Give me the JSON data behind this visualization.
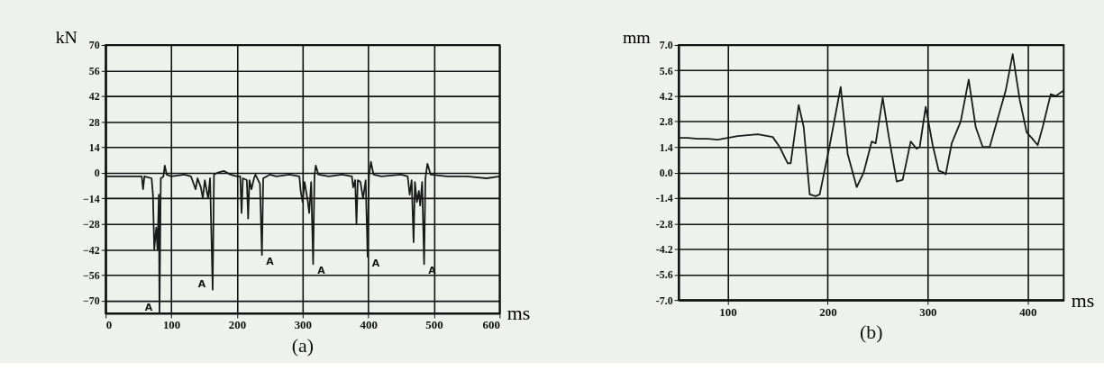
{
  "chart_data": [
    {
      "type": "line",
      "title": "(a)",
      "xlabel": "ms",
      "ylabel": "kN",
      "color": "#1a1a1a",
      "grid": true,
      "xlim": [
        0,
        600
      ],
      "ylim": [
        -77,
        70
      ],
      "xticks": [
        0,
        100,
        200,
        300,
        400,
        500,
        600
      ],
      "yticks": [
        70,
        56,
        42,
        28,
        14,
        0,
        -14,
        -28,
        -42,
        -56,
        -70
      ],
      "x": [
        0,
        55,
        57,
        59,
        70,
        72,
        74,
        77,
        79,
        81,
        82,
        84,
        88,
        90,
        93,
        100,
        120,
        130,
        137,
        140,
        145,
        148,
        151,
        156,
        159,
        163,
        165,
        170,
        180,
        190,
        200,
        205,
        207,
        209,
        215,
        217,
        219,
        222,
        226,
        228,
        235,
        238,
        240,
        250,
        260,
        280,
        295,
        297,
        300,
        303,
        308,
        310,
        313,
        316,
        318,
        320,
        324,
        340,
        360,
        375,
        377,
        380,
        382,
        384,
        388,
        392,
        396,
        399,
        401,
        404,
        408,
        420,
        450,
        460,
        463,
        466,
        469,
        471,
        474,
        477,
        479,
        482,
        485,
        487,
        490,
        495,
        520,
        550,
        580,
        600
      ],
      "values": [
        -2,
        -2,
        -9,
        -2,
        -3,
        -12,
        -42,
        -30,
        -42,
        -12,
        -77,
        -3,
        -2,
        4,
        -1,
        -2,
        -1,
        -2,
        -9,
        -3,
        -8,
        -14,
        -4,
        -14,
        -3,
        -64,
        -1,
        0,
        1,
        -1,
        -2,
        -2,
        -22,
        -3,
        -4,
        -25,
        -4,
        -9,
        -3,
        -1,
        -6,
        -45,
        -3,
        -1,
        -2,
        -1,
        -2,
        -10,
        -16,
        -5,
        -16,
        -22,
        -5,
        -50,
        -2,
        4,
        -1,
        -2,
        -1,
        -2,
        -8,
        -4,
        -28,
        -4,
        -5,
        -14,
        -4,
        -46,
        -2,
        6,
        -1,
        -2,
        -1,
        -2,
        -12,
        -4,
        -38,
        -5,
        -16,
        -10,
        -18,
        -5,
        -50,
        -3,
        5,
        -1,
        -2,
        -2,
        -3,
        -2
      ],
      "annotations": [
        {
          "text": "A",
          "x": 82,
          "y": -77
        },
        {
          "text": "A",
          "x": 163,
          "y": -64
        },
        {
          "text": "A",
          "x": 238,
          "y": -45
        },
        {
          "text": "A",
          "x": 316,
          "y": -50
        },
        {
          "text": "A",
          "x": 399,
          "y": -46
        },
        {
          "text": "A",
          "x": 485,
          "y": -50
        }
      ]
    },
    {
      "type": "line",
      "title": "(b)",
      "xlabel": "ms",
      "ylabel": "mm",
      "color": "#1a1a1a",
      "grid": true,
      "xlim": [
        51,
        436
      ],
      "ylim": [
        -7,
        7
      ],
      "xticks": [
        100,
        200,
        300,
        400
      ],
      "yticks": [
        {
          "value": 7,
          "label": "7.0"
        },
        {
          "value": 5.6,
          "label": "5.6"
        },
        {
          "value": 4.2,
          "label": "4.2"
        },
        {
          "value": 2.8,
          "label": "2.8"
        },
        {
          "value": 1.4,
          "label": "1.4"
        },
        {
          "value": 0,
          "label": "0.0"
        },
        {
          "value": -1.4,
          "label": "-1.4"
        },
        {
          "value": -2.8,
          "label": "-2.8"
        },
        {
          "value": -4.2,
          "label": "-4.2"
        },
        {
          "value": -5.6,
          "label": "-5.6"
        },
        {
          "value": -7,
          "label": "-7.0"
        }
      ],
      "x": [
        51,
        60,
        70,
        80,
        90,
        100,
        110,
        120,
        130,
        140,
        145,
        152,
        160,
        163,
        171,
        176,
        182,
        188,
        192,
        201,
        213,
        220,
        229,
        236,
        244,
        248,
        255,
        261,
        269,
        275,
        283,
        289,
        292,
        298,
        305,
        311,
        316,
        318,
        324,
        333,
        341,
        348,
        355,
        362,
        378,
        385,
        392,
        399,
        404,
        410,
        415,
        423,
        428,
        436
      ],
      "values": [
        1.9,
        1.9,
        1.85,
        1.85,
        1.8,
        1.9,
        2.0,
        2.05,
        2.1,
        2.0,
        1.95,
        1.4,
        0.5,
        0.5,
        3.7,
        2.5,
        -1.2,
        -1.3,
        -1.2,
        1.2,
        4.7,
        1.0,
        -0.8,
        0,
        1.7,
        1.6,
        4.1,
        2.0,
        -0.5,
        -0.4,
        1.7,
        1.3,
        1.4,
        3.6,
        1.5,
        0.1,
        0,
        -0.1,
        1.6,
        2.8,
        5.1,
        2.5,
        1.4,
        1.4,
        4.5,
        6.5,
        4.0,
        2.2,
        1.9,
        1.5,
        2.5,
        4.3,
        4.2,
        4.5
      ]
    }
  ]
}
